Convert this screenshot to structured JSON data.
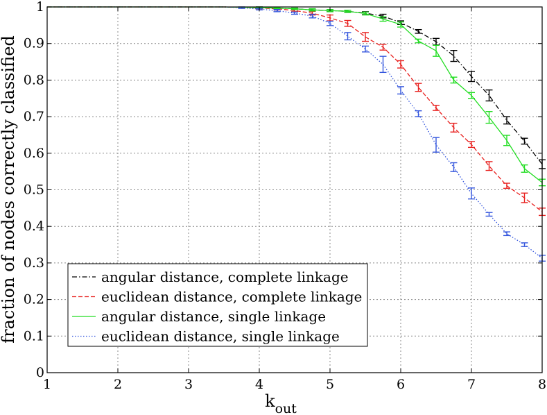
{
  "chart_data": {
    "type": "line",
    "title": "",
    "xlabel": "k",
    "xlabel_sub": "out",
    "ylabel": "fraction of nodes correctly classified",
    "xlim": [
      1,
      8
    ],
    "ylim": [
      0,
      1
    ],
    "x_ticks": [
      1,
      2,
      3,
      4,
      5,
      6,
      7,
      8
    ],
    "y_ticks": [
      0,
      0.1,
      0.2,
      0.3,
      0.4,
      0.5,
      0.6,
      0.7,
      0.8,
      0.9,
      1
    ],
    "y_tick_labels": [
      "0",
      "0.1",
      "0.2",
      "0.3",
      "0.4",
      "0.5",
      "0.6",
      "0.7",
      "0.8",
      "0.9",
      "1"
    ],
    "grid": true,
    "legend_position": "bottom-left",
    "x": [
      1,
      1.25,
      1.5,
      1.75,
      2,
      2.25,
      2.5,
      2.75,
      3,
      3.25,
      3.5,
      3.75,
      4,
      4.25,
      4.5,
      4.75,
      5,
      5.25,
      5.5,
      5.75,
      6,
      6.25,
      6.5,
      6.75,
      7,
      7.25,
      7.5,
      7.75,
      8
    ],
    "series": [
      {
        "name": "angular distance, complete linkage",
        "color": "#000000",
        "dash": "dashdot",
        "values": [
          1,
          1,
          1,
          1,
          1,
          1,
          1,
          1,
          1,
          1,
          1,
          0.999,
          0.998,
          0.997,
          0.995,
          0.992,
          0.99,
          0.988,
          0.983,
          0.975,
          0.957,
          0.933,
          0.905,
          0.866,
          0.81,
          0.758,
          0.69,
          0.633,
          0.57
        ],
        "errors": [
          0,
          0,
          0,
          0,
          0,
          0,
          0,
          0,
          0,
          0,
          0,
          0,
          0.002,
          0.002,
          0.002,
          0.003,
          0.003,
          0.003,
          0.004,
          0.005,
          0.005,
          0.005,
          0.009,
          0.015,
          0.014,
          0.015,
          0.01,
          0.008,
          0.012
        ]
      },
      {
        "name": "euclidean distance, complete linkage",
        "color": "#e8201e",
        "dash": "dashed",
        "values": [
          1,
          1,
          1,
          1,
          1,
          1,
          1,
          1,
          1,
          1,
          1,
          0.999,
          0.997,
          0.995,
          0.99,
          0.983,
          0.97,
          0.955,
          0.918,
          0.89,
          0.843,
          0.78,
          0.724,
          0.67,
          0.624,
          0.565,
          0.511,
          0.478,
          0.44
        ],
        "errors": [
          0,
          0,
          0,
          0,
          0,
          0,
          0,
          0,
          0,
          0,
          0,
          0,
          0.002,
          0.003,
          0.003,
          0.005,
          0.008,
          0.008,
          0.012,
          0.008,
          0.01,
          0.011,
          0.007,
          0.012,
          0.008,
          0.012,
          0.007,
          0.013,
          0.01
        ]
      },
      {
        "name": "angular distance, single linkage",
        "color": "#22dd22",
        "dash": "solid",
        "values": [
          1,
          1,
          1,
          1,
          1,
          1,
          1,
          1,
          1,
          1,
          1,
          0.999,
          0.998,
          0.997,
          0.995,
          0.992,
          0.99,
          0.988,
          0.982,
          0.967,
          0.952,
          0.907,
          0.88,
          0.8,
          0.758,
          0.698,
          0.635,
          0.558,
          0.52
        ],
        "errors": [
          0,
          0,
          0,
          0,
          0,
          0,
          0,
          0,
          0,
          0,
          0,
          0,
          0.002,
          0.002,
          0.002,
          0.003,
          0.003,
          0.003,
          0.004,
          0.006,
          0.007,
          0.005,
          0.015,
          0.008,
          0.008,
          0.016,
          0.014,
          0.01,
          0.009
        ]
      },
      {
        "name": "euclidean distance, single linkage",
        "color": "#3355dd",
        "dash": "dotted",
        "values": [
          1,
          1,
          1,
          1,
          1,
          1,
          1,
          1,
          1,
          1,
          1,
          0.998,
          0.994,
          0.99,
          0.983,
          0.975,
          0.955,
          0.92,
          0.885,
          0.843,
          0.772,
          0.708,
          0.623,
          0.562,
          0.49,
          0.433,
          0.38,
          0.35,
          0.313
        ],
        "errors": [
          0,
          0,
          0,
          0,
          0,
          0,
          0,
          0,
          0,
          0,
          0,
          0.002,
          0.002,
          0.003,
          0.003,
          0.005,
          0.006,
          0.01,
          0.008,
          0.022,
          0.01,
          0.008,
          0.02,
          0.012,
          0.015,
          0.005,
          0.005,
          0.005,
          0.008
        ]
      }
    ]
  }
}
